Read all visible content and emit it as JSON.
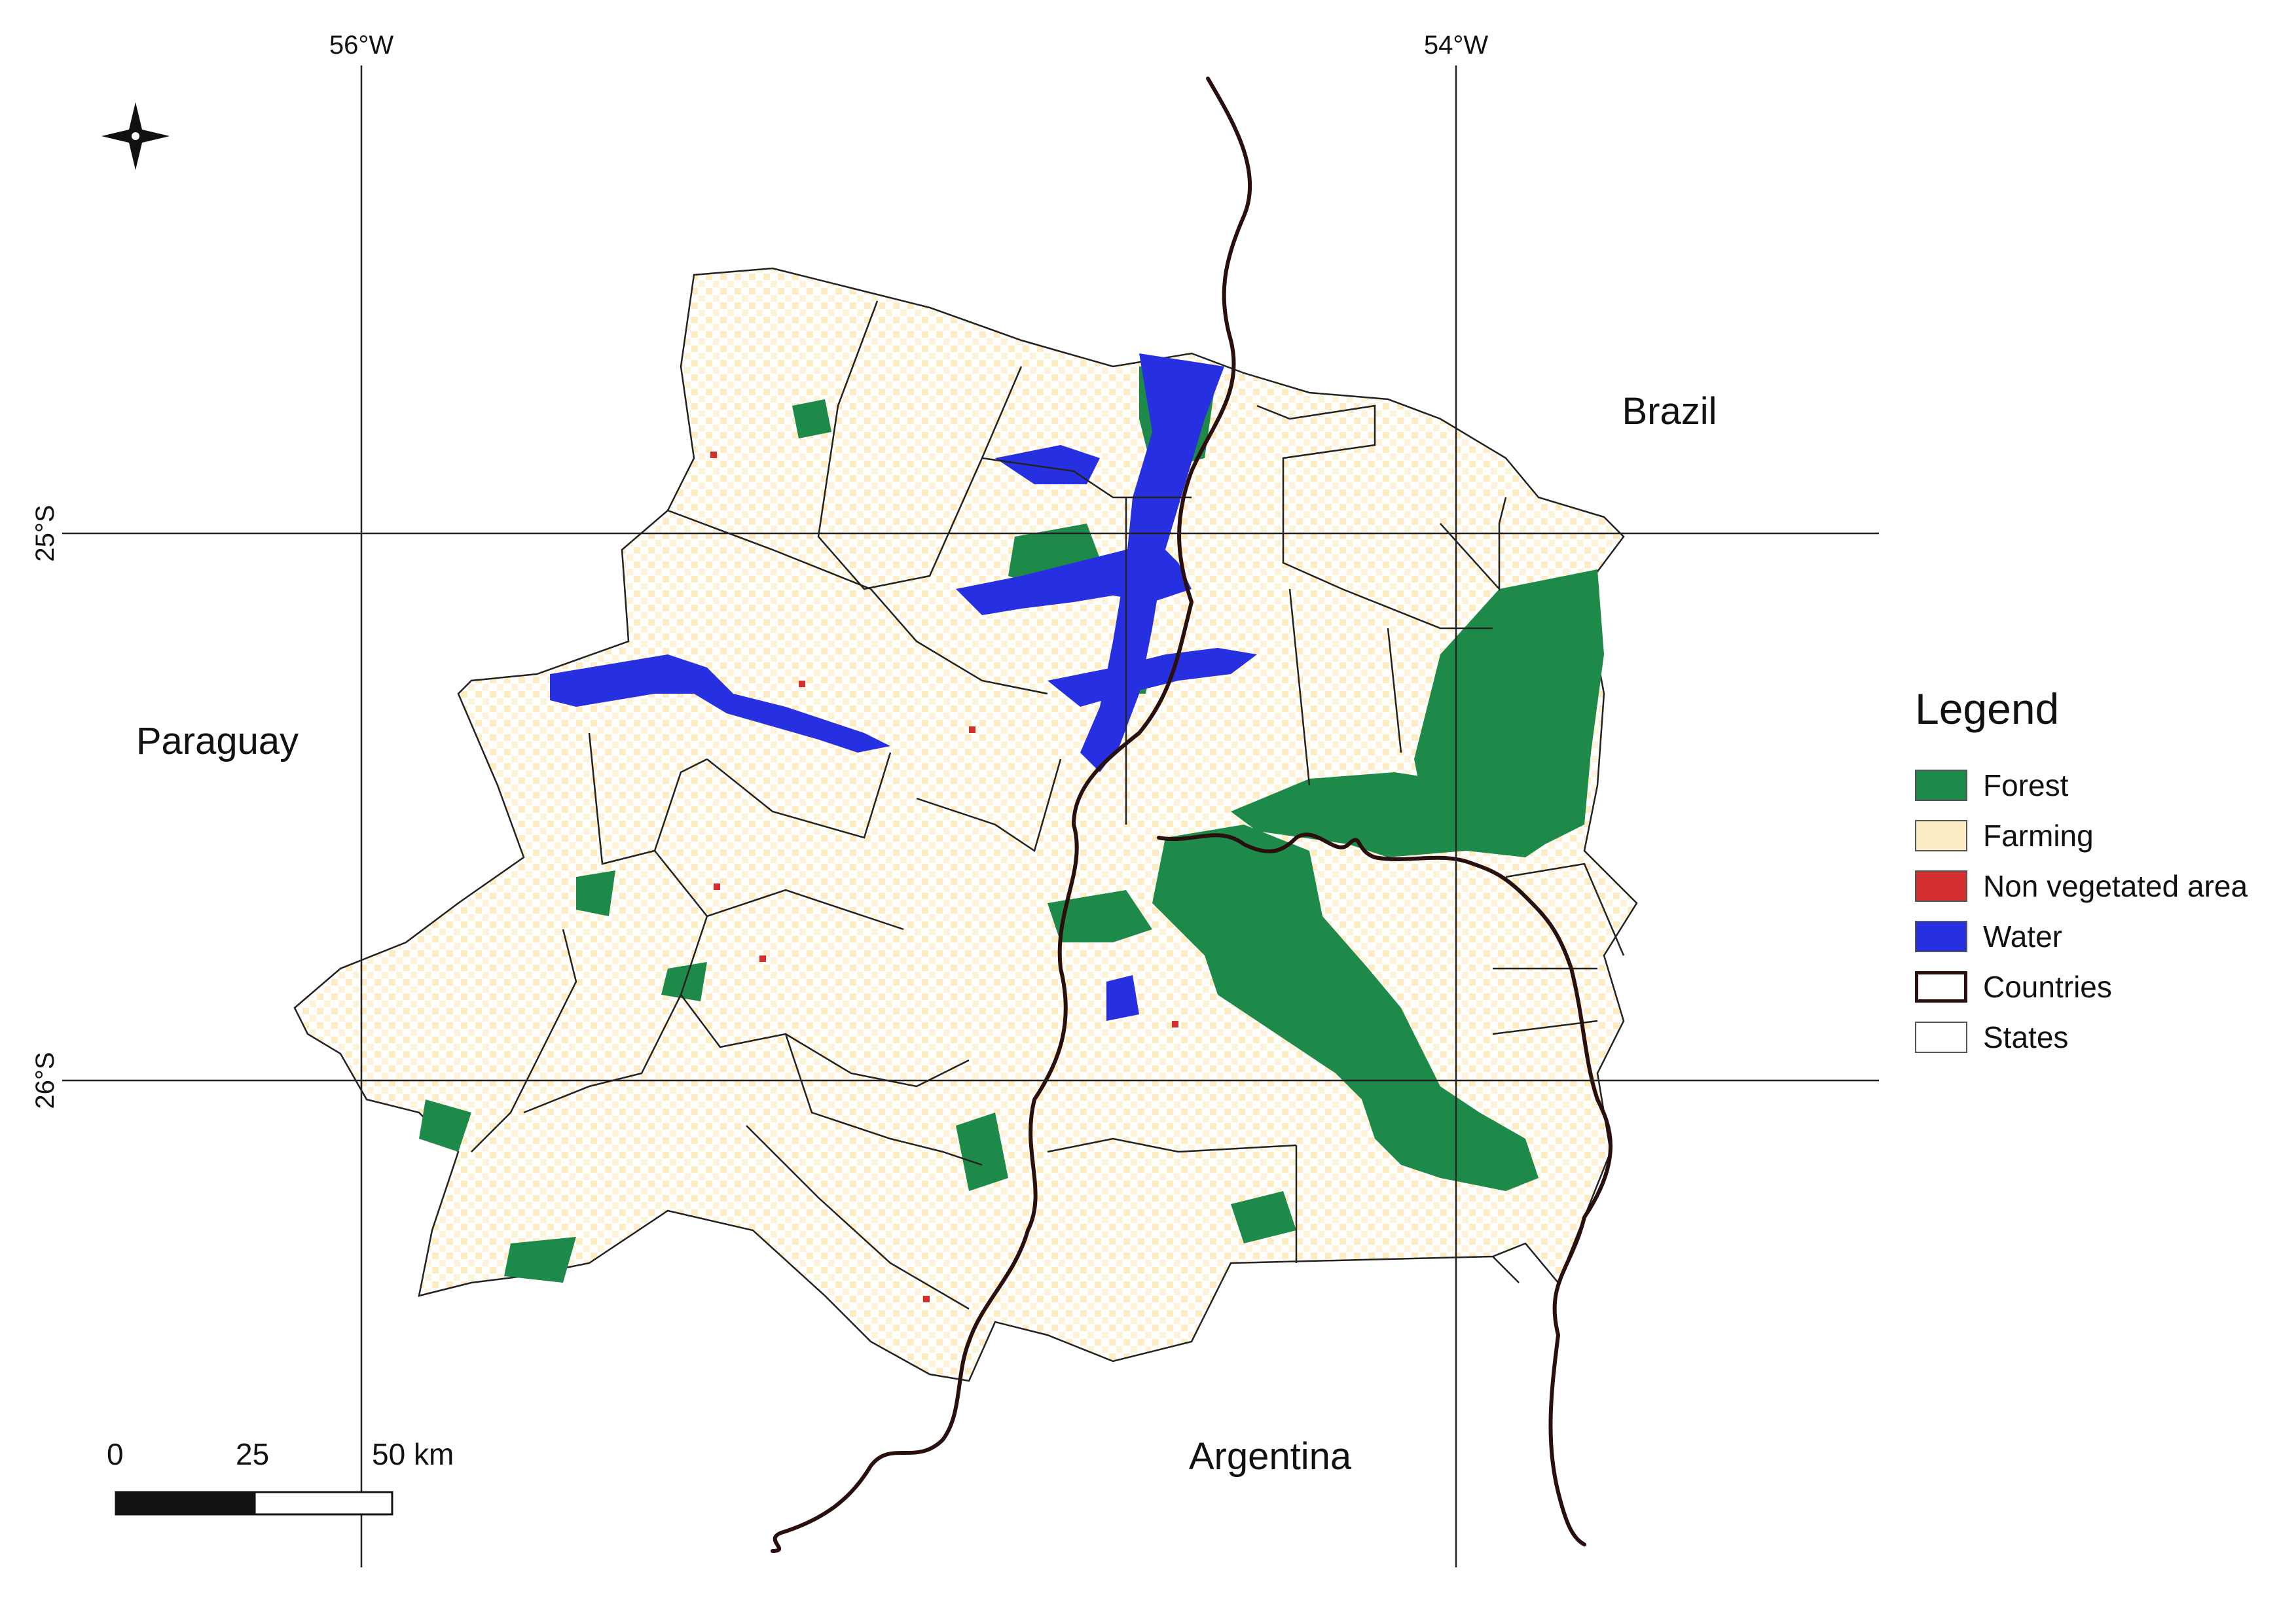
{
  "graticule": {
    "lon_labels": [
      "56°W",
      "54°W"
    ],
    "lat_labels": [
      "25°S",
      "26°S"
    ]
  },
  "countries": {
    "brazil": "Brazil",
    "paraguay": "Paraguay",
    "argentina": "Argentina"
  },
  "legend": {
    "title": "Legend",
    "items": [
      {
        "label": "Forest",
        "color": "#1e8a4a"
      },
      {
        "label": "Farming",
        "color": "#fdecc4"
      },
      {
        "label": "Non vegetated area",
        "color": "#d32f2f"
      },
      {
        "label": "Water",
        "color": "#2630e0"
      },
      {
        "label": "Countries",
        "color": "#2a0f0f"
      },
      {
        "label": "States",
        "color": "#ffffff"
      }
    ]
  },
  "scale_bar": {
    "labels": [
      "0",
      "25",
      "50 km"
    ]
  },
  "icons": {
    "north": "north-arrow-icon"
  }
}
